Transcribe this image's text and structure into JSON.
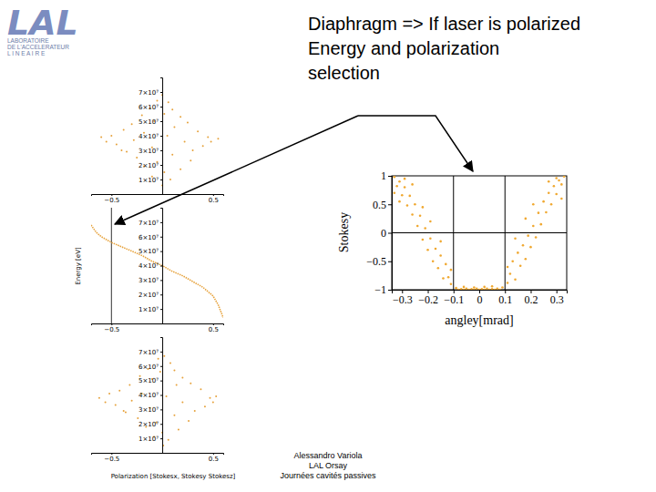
{
  "slide": {
    "logo": {
      "mark": "LAL",
      "lines": [
        "LABORATOIRE",
        "DE L'ACCELERATEUR",
        "L I N E A I R E"
      ]
    },
    "title": [
      "Diaphragm => If laser is polarized",
      "Energy and polarization",
      "selection"
    ],
    "footer": [
      "Alessandro Variola",
      "LAL Orsay",
      "Journées cavités passives"
    ]
  },
  "chart_data": [
    {
      "type": "scatter",
      "color": "#e6a23c",
      "x": [
        0,
        -0.05,
        0.06,
        -0.12,
        0.1,
        0.02,
        -0.2,
        0.18,
        -0.08,
        0.25,
        -0.3,
        0.12,
        -0.38,
        0.35,
        -0.18,
        -0.5,
        0.45,
        0.05,
        -0.6,
        0.55,
        -0.28,
        0.22,
        -0.45,
        0.4,
        -0.1,
        0.3,
        -0.35,
        0.1,
        -0.25,
        0.28,
        -0.05,
        -0.18,
        0.18,
        0.02,
        -0.1,
        0.08,
        0,
        -0.4,
        0.48,
        -0.55
      ],
      "values": [
        68000000.0,
        64000000.0,
        63000000.0,
        59000000.0,
        58000000.0,
        55000000.0,
        54000000.0,
        53000000.0,
        50000000.0,
        49000000.0,
        48000000.0,
        46000000.0,
        44000000.0,
        43000000.0,
        42000000.0,
        40000000.0,
        39000000.0,
        40000000.0,
        39000000.0,
        38000000.0,
        37000000.0,
        36000000.0,
        34000000.0,
        33000000.0,
        32000000.0,
        30000000.0,
        29000000.0,
        27000000.0,
        25000000.0,
        23000000.0,
        22000000.0,
        19000000.0,
        17000000.0,
        15000000.0,
        12000000.0,
        10000000.0,
        6000000.0,
        30000000.0,
        36000000.0,
        36000000.0
      ],
      "xlim": [
        -0.7,
        0.6
      ],
      "ylim": [
        0,
        80000000.0
      ],
      "xticks": [
        {
          "value": -0.5,
          "label": "−0.5"
        },
        0.5
      ],
      "yticks": [
        {
          "value": 10000000.0,
          "label": "1×10⁷"
        },
        {
          "value": 20000000.0,
          "label": "2×10⁷"
        },
        {
          "value": 30000000.0,
          "label": "3×10⁷"
        },
        {
          "value": 40000000.0,
          "label": "4×10⁷"
        },
        {
          "value": 50000000.0,
          "label": "5×10⁷"
        },
        {
          "value": 60000000.0,
          "label": "6×10⁷"
        },
        {
          "value": 70000000.0,
          "label": "7×10⁷"
        }
      ]
    },
    {
      "type": "line",
      "color": "#e6a23c",
      "ylabel": "Energy [eV]",
      "x": [
        -0.7,
        -0.65,
        -0.6,
        -0.5,
        -0.4,
        -0.3,
        -0.2,
        -0.1,
        0,
        0.1,
        0.2,
        0.3,
        0.4,
        0.5,
        0.55,
        0.6
      ],
      "values": [
        68000000.0,
        63000000.0,
        60000000.0,
        56000000.0,
        53000000.0,
        50000000.0,
        47000000.0,
        43000000.0,
        40000000.0,
        36000000.0,
        33000000.0,
        29000000.0,
        25000000.0,
        19000000.0,
        13000000.0,
        4000000.0
      ],
      "vlines": [
        -0.5
      ],
      "xlim": [
        -0.7,
        0.6
      ],
      "ylim": [
        0,
        80000000.0
      ],
      "xticks": [
        {
          "value": -0.5,
          "label": "−0.5"
        },
        0.5
      ],
      "yticks": [
        {
          "value": 10000000.0,
          "label": "1×10⁷"
        },
        {
          "value": 20000000.0,
          "label": "2×10⁷"
        },
        {
          "value": 30000000.0,
          "label": "3×10⁷"
        },
        {
          "value": 40000000.0,
          "label": "4×10⁷"
        },
        {
          "value": 50000000.0,
          "label": "5×10⁷"
        },
        {
          "value": 60000000.0,
          "label": "6×10⁷"
        },
        {
          "value": 70000000.0,
          "label": "7×10⁷"
        }
      ]
    },
    {
      "type": "scatter",
      "color": "#e6a23c",
      "xlabel": "Polarization [Stokesx, Stokesy Stokesz]",
      "x": [
        0.02,
        -0.04,
        0.08,
        -0.14,
        0.12,
        -0.02,
        -0.22,
        0.2,
        -0.1,
        0.28,
        -0.32,
        0.14,
        -0.42,
        0.38,
        -0.2,
        -0.52,
        0.47,
        0.04,
        -0.62,
        0.53,
        -0.3,
        0.2,
        -0.46,
        0.42,
        -0.12,
        0.32,
        -0.36,
        0.12,
        -0.24,
        0.26,
        -0.06,
        -0.16,
        0.16,
        0,
        -0.08,
        0.06,
        0.01,
        -0.38,
        0.5,
        -0.56
      ],
      "values": [
        67000000.0,
        65000000.0,
        62000000.0,
        58000000.0,
        57000000.0,
        56000000.0,
        53000000.0,
        52000000.0,
        51000000.0,
        48000000.0,
        47000000.0,
        47000000.0,
        43000000.0,
        44000000.0,
        41000000.0,
        41000000.0,
        38000000.0,
        39000000.0,
        38000000.0,
        39000000.0,
        36000000.0,
        35000000.0,
        33000000.0,
        32000000.0,
        31000000.0,
        29000000.0,
        28000000.0,
        26000000.0,
        24000000.0,
        22000000.0,
        21000000.0,
        18000000.0,
        16000000.0,
        14000000.0,
        11000000.0,
        9000000.0,
        5000000.0,
        29000000.0,
        35000000.0,
        35000000.0
      ],
      "xlim": [
        -0.7,
        0.6
      ],
      "ylim": [
        0,
        80000000.0
      ],
      "xticks": [
        {
          "value": -0.5,
          "label": "−0.5"
        },
        0.5
      ],
      "yticks": [
        {
          "value": 10000000.0,
          "label": "1×10⁷"
        },
        {
          "value": 20000000.0,
          "label": "2×10⁷"
        },
        {
          "value": 30000000.0,
          "label": "3×10⁷"
        },
        {
          "value": 40000000.0,
          "label": "4×10⁷"
        },
        {
          "value": 50000000.0,
          "label": "5×10⁷"
        },
        {
          "value": 60000000.0,
          "label": "6×10⁷"
        },
        {
          "value": 70000000.0,
          "label": "7×10⁷"
        }
      ]
    },
    {
      "type": "scatter",
      "color": "#f0a830",
      "xlabel": "angley[mrad]",
      "ylabel": "Stokesy",
      "x": [
        -0.09,
        -0.08,
        -0.07,
        -0.06,
        -0.05,
        -0.04,
        -0.03,
        -0.02,
        -0.01,
        0,
        0.01,
        0.02,
        0.03,
        0.04,
        0.05,
        0.06,
        0.07,
        0.08,
        0.09,
        -0.06,
        0.05,
        -0.02,
        0.02,
        -0.11,
        -0.12,
        -0.11,
        -0.13,
        -0.14,
        -0.15,
        -0.16,
        -0.17,
        -0.18,
        -0.19,
        -0.2,
        -0.21,
        -0.22,
        -0.23,
        -0.24,
        -0.25,
        -0.26,
        -0.27,
        -0.28,
        -0.29,
        -0.3,
        -0.31,
        -0.32,
        -0.33,
        -0.26,
        -0.29,
        -0.22,
        -0.19,
        -0.15,
        -0.33,
        -0.31,
        0.11,
        0.12,
        0.11,
        0.13,
        0.14,
        0.15,
        0.16,
        0.17,
        0.18,
        0.19,
        0.2,
        0.21,
        0.22,
        0.23,
        0.24,
        0.25,
        0.26,
        0.27,
        0.28,
        0.29,
        0.3,
        0.31,
        0.32,
        0.33,
        0.27,
        0.3,
        0.21,
        0.18,
        0.14,
        0.32
      ],
      "values": [
        -0.97,
        -1,
        -0.99,
        -1,
        -0.98,
        -1,
        -0.99,
        -1,
        -0.98,
        -1,
        -0.99,
        -1,
        -0.98,
        -1,
        -0.99,
        -1,
        -0.98,
        -1,
        -0.96,
        -0.95,
        -0.94,
        -0.96,
        -0.95,
        -0.9,
        -0.78,
        -0.65,
        -0.55,
        -0.8,
        -0.4,
        -0.62,
        -0.28,
        -0.5,
        -0.1,
        -0.3,
        0.08,
        -0.12,
        0.3,
        0.12,
        0.5,
        0.32,
        0.65,
        0.48,
        0.8,
        0.66,
        0.9,
        0.82,
        0.98,
        0.85,
        0.95,
        0.45,
        0.2,
        -0.15,
        0.7,
        0.55,
        -0.88,
        -0.72,
        -0.6,
        -0.5,
        -0.82,
        -0.35,
        -0.58,
        -0.22,
        -0.46,
        -0.05,
        -0.25,
        0.12,
        -0.08,
        0.35,
        0.15,
        0.55,
        0.36,
        0.7,
        0.5,
        0.82,
        0.68,
        0.92,
        0.85,
        0.99,
        0.9,
        0.96,
        0.5,
        0.25,
        -0.1,
        0.6
      ],
      "vlines": [
        -0.1,
        0.1
      ],
      "xlim": [
        -0.34,
        0.34
      ],
      "ylim": [
        -1,
        1
      ],
      "xticks": [
        {
          "value": -0.3,
          "label": "−0.3"
        },
        {
          "value": -0.2,
          "label": "−0.2"
        },
        {
          "value": -0.1,
          "label": "−0.1"
        },
        0,
        0.1,
        0.2,
        0.3
      ],
      "yticks": [
        {
          "value": -1,
          "label": "−1"
        },
        {
          "value": -0.5,
          "label": "−0.5"
        },
        0,
        0.5,
        1
      ]
    }
  ]
}
